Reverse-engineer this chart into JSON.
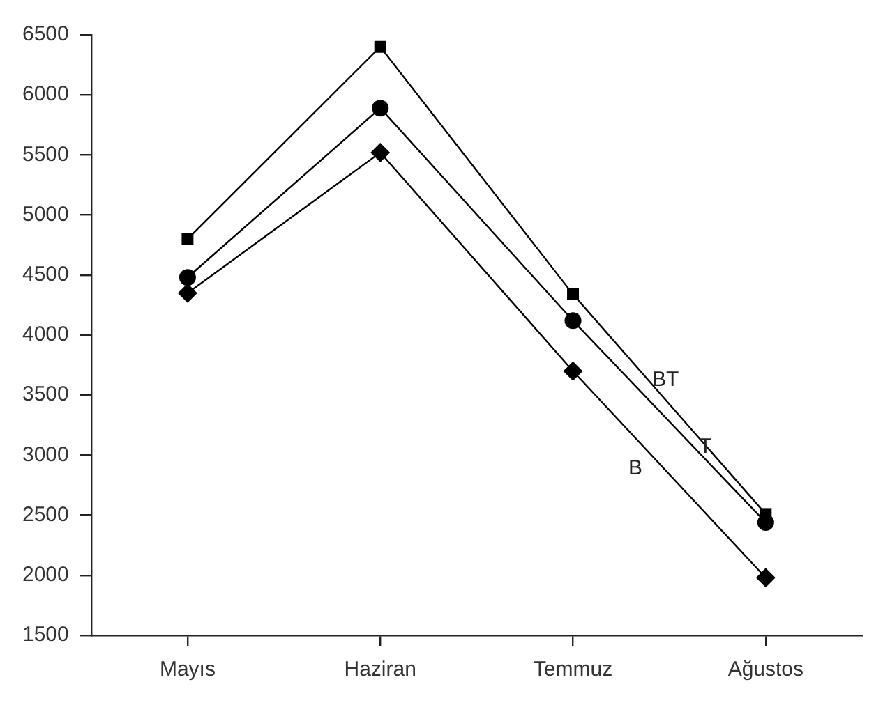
{
  "chart_data": {
    "type": "line",
    "categories": [
      "Mayıs",
      "Haziran",
      "Temmuz",
      "Ağustos"
    ],
    "series": [
      {
        "name": "BT",
        "color": "#000000",
        "marker": "square",
        "values": [
          4800,
          6400,
          4340,
          2510
        ]
      },
      {
        "name": "T",
        "color": "#000000",
        "marker": "circle",
        "values": [
          4480,
          5890,
          4120,
          2440
        ]
      },
      {
        "name": "B",
        "color": "#000000",
        "marker": "diamond",
        "values": [
          4350,
          5520,
          3700,
          1980
        ]
      }
    ],
    "ylim": [
      1500,
      6500
    ],
    "yticks": [
      1500,
      2000,
      2500,
      3000,
      3500,
      4000,
      4500,
      5000,
      5500,
      6000,
      6500
    ],
    "legend": false
  }
}
